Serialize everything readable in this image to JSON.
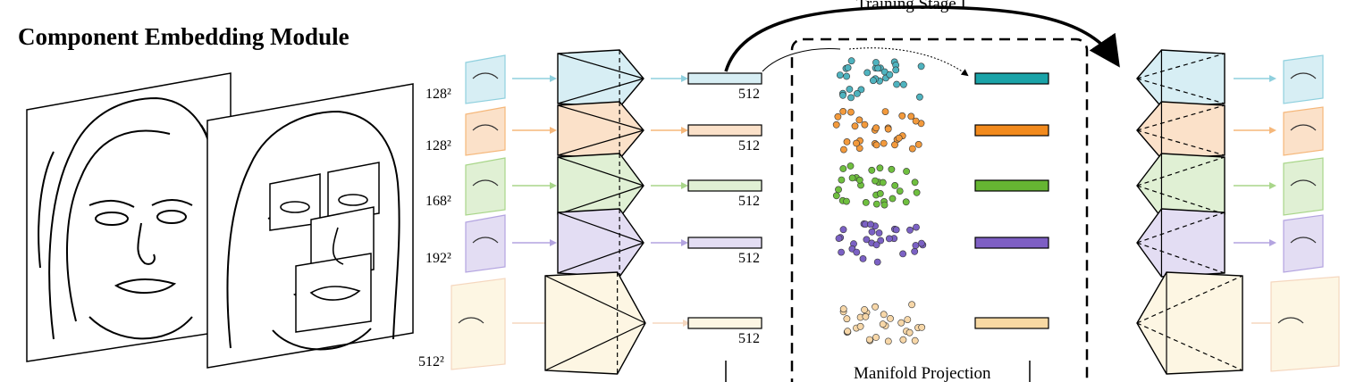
{
  "title": "Component Embedding Module",
  "stage_label": "Training Stage I",
  "manifold_label": "Manifold Projection",
  "components": [
    {
      "size": "128²",
      "dim": "512",
      "color": "#d7eef4",
      "stroke": "#8fd0de",
      "point_color": "#4fb3bf",
      "bar_color": "#1aa3a8"
    },
    {
      "size": "128²",
      "dim": "512",
      "color": "#fbe1c9",
      "stroke": "#f5b77a",
      "point_color": "#f39a3c",
      "bar_color": "#f28a1d"
    },
    {
      "size": "168²",
      "dim": "512",
      "color": "#e0f0d4",
      "stroke": "#a9d68a",
      "point_color": "#6fbf3f",
      "bar_color": "#66b532"
    },
    {
      "size": "192²",
      "dim": "512",
      "color": "#e3ddf3",
      "stroke": "#b3a4e0",
      "point_color": "#7b61c4",
      "bar_color": "#7e5fc4"
    },
    {
      "size": "512²",
      "dim": "512",
      "color": "#fdf6e3",
      "stroke": "#f5d7bf",
      "point_color": "#f7d7a8",
      "bar_color": "#f8d9a3"
    }
  ],
  "icons": {
    "arrow": "arrow-icon",
    "face": "face-sketch-icon"
  }
}
